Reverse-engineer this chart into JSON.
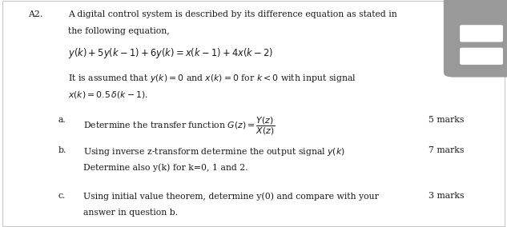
{
  "bg_color": "#ffffff",
  "border_color": "#c8c8c8",
  "text_color": "#1a1a1a",
  "question_number": "A2.",
  "intro_line1": "A digital control system is described by its difference equation as stated in",
  "intro_line2": "the following equation,",
  "equation": "$y(k) + 5y(k-1) + 6y(k) = x(k-1) + 4x(k-2)$",
  "condition_line1": "It is assumed that $y(k) = 0$ and $x(k) = 0$ for $k < 0$ with input signal",
  "condition_line2": "$x(k) = 0.5\\,\\delta(k-1)$.",
  "part_a_label": "a.",
  "part_a_text": "Determine the transfer function $G(z) = \\dfrac{Y(z)}{X(z)}$",
  "part_a_marks": "5 marks",
  "part_b_label": "b.",
  "part_b_line1": "Using inverse z-transform determine the output signal $y(k)$",
  "part_b_line2": "Determine also y(k) for k=0, 1 and 2.",
  "part_b_marks": "7 marks",
  "part_c_label": "c.",
  "part_c_line1": "Using initial value theorem, determine y(0) and compare with your",
  "part_c_line2": "answer in question b.",
  "part_c_marks": "3 marks",
  "icon_color": "#999999"
}
